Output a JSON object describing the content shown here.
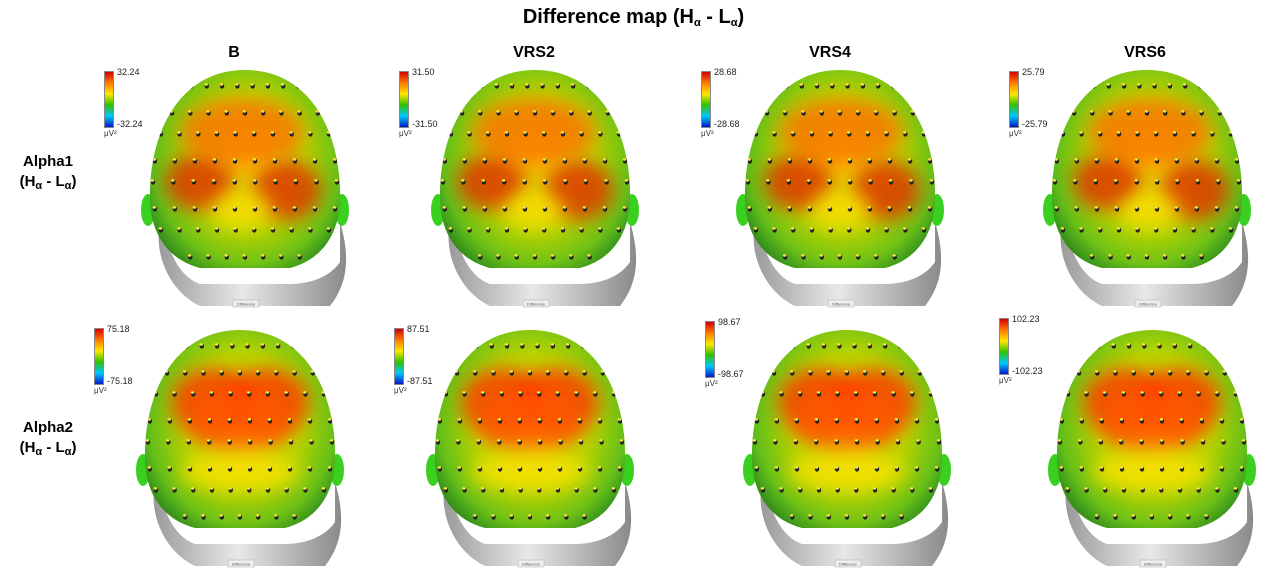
{
  "title": {
    "prefix": "Difference map (H",
    "sub1": "α",
    "mid": " -  L",
    "sub2": "α",
    "suffix": ")"
  },
  "columns": [
    "B",
    "VRS2",
    "VRS4",
    "VRS6"
  ],
  "rows": [
    {
      "name": "Alpha1",
      "expr": {
        "h": "H",
        "sub1": "α",
        "mid": " -  L",
        "sub2": "α"
      }
    },
    {
      "name": "Alpha2",
      "expr": {
        "h": "H",
        "sub1": "α",
        "mid": " -  L",
        "sub2": "α"
      }
    }
  ],
  "colorbar_unit": "μV²",
  "plate_label": "Difference",
  "colorbar_colors": [
    "#d40000",
    "#ff7a00",
    "#ffe800",
    "#30c000",
    "#00c8ff",
    "#0018c8"
  ],
  "maps": [
    [
      {
        "max": "32.24",
        "min": "-32.24"
      },
      {
        "max": "31.50",
        "min": "-31.50"
      },
      {
        "max": "28.68",
        "min": "-28.68"
      },
      {
        "max": "25.79",
        "min": "-25.79"
      }
    ],
    [
      {
        "max": "75.18",
        "min": "-75.18"
      },
      {
        "max": "87.51",
        "min": "-87.51"
      },
      {
        "max": "98.67",
        "min": "-98.67"
      },
      {
        "max": "102.23",
        "min": "-102.23"
      }
    ]
  ]
}
